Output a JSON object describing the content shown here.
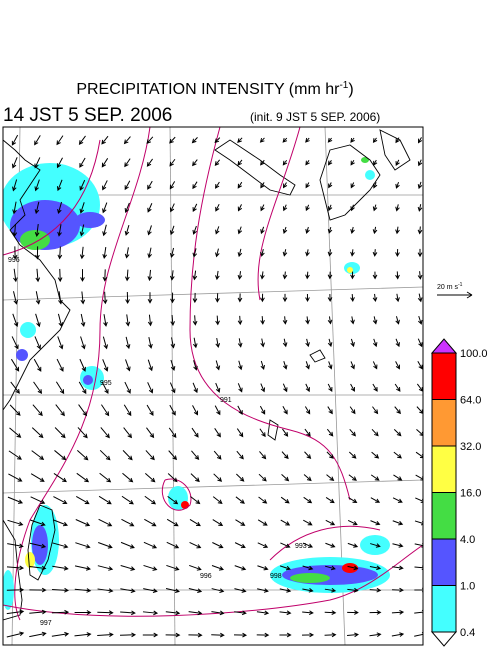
{
  "header": {
    "title": "PRECIPITATION INTENSITY (mm hr",
    "title_exponent": "-1",
    "title_end": ")",
    "valid_time": "14 JST 5 SEP. 2006",
    "init_time": "(init. 9 JST 5 SEP. 2006)"
  },
  "wind_reference": {
    "label": "20 m s",
    "exponent": "-1"
  },
  "colorbar": {
    "levels": [
      "100.0",
      "64.0",
      "32.0",
      "16.0",
      "4.0",
      "1.0",
      "0.4"
    ],
    "colors": [
      "#ff0000",
      "#ff9933",
      "#ffff44",
      "#44dd44",
      "#5555ff",
      "#44ffff"
    ],
    "over_color": "#cc33ff",
    "under_color": "#ffffff"
  },
  "contour_labels": [
    "996",
    "995",
    "991",
    "993",
    "998",
    "996",
    "997"
  ]
}
